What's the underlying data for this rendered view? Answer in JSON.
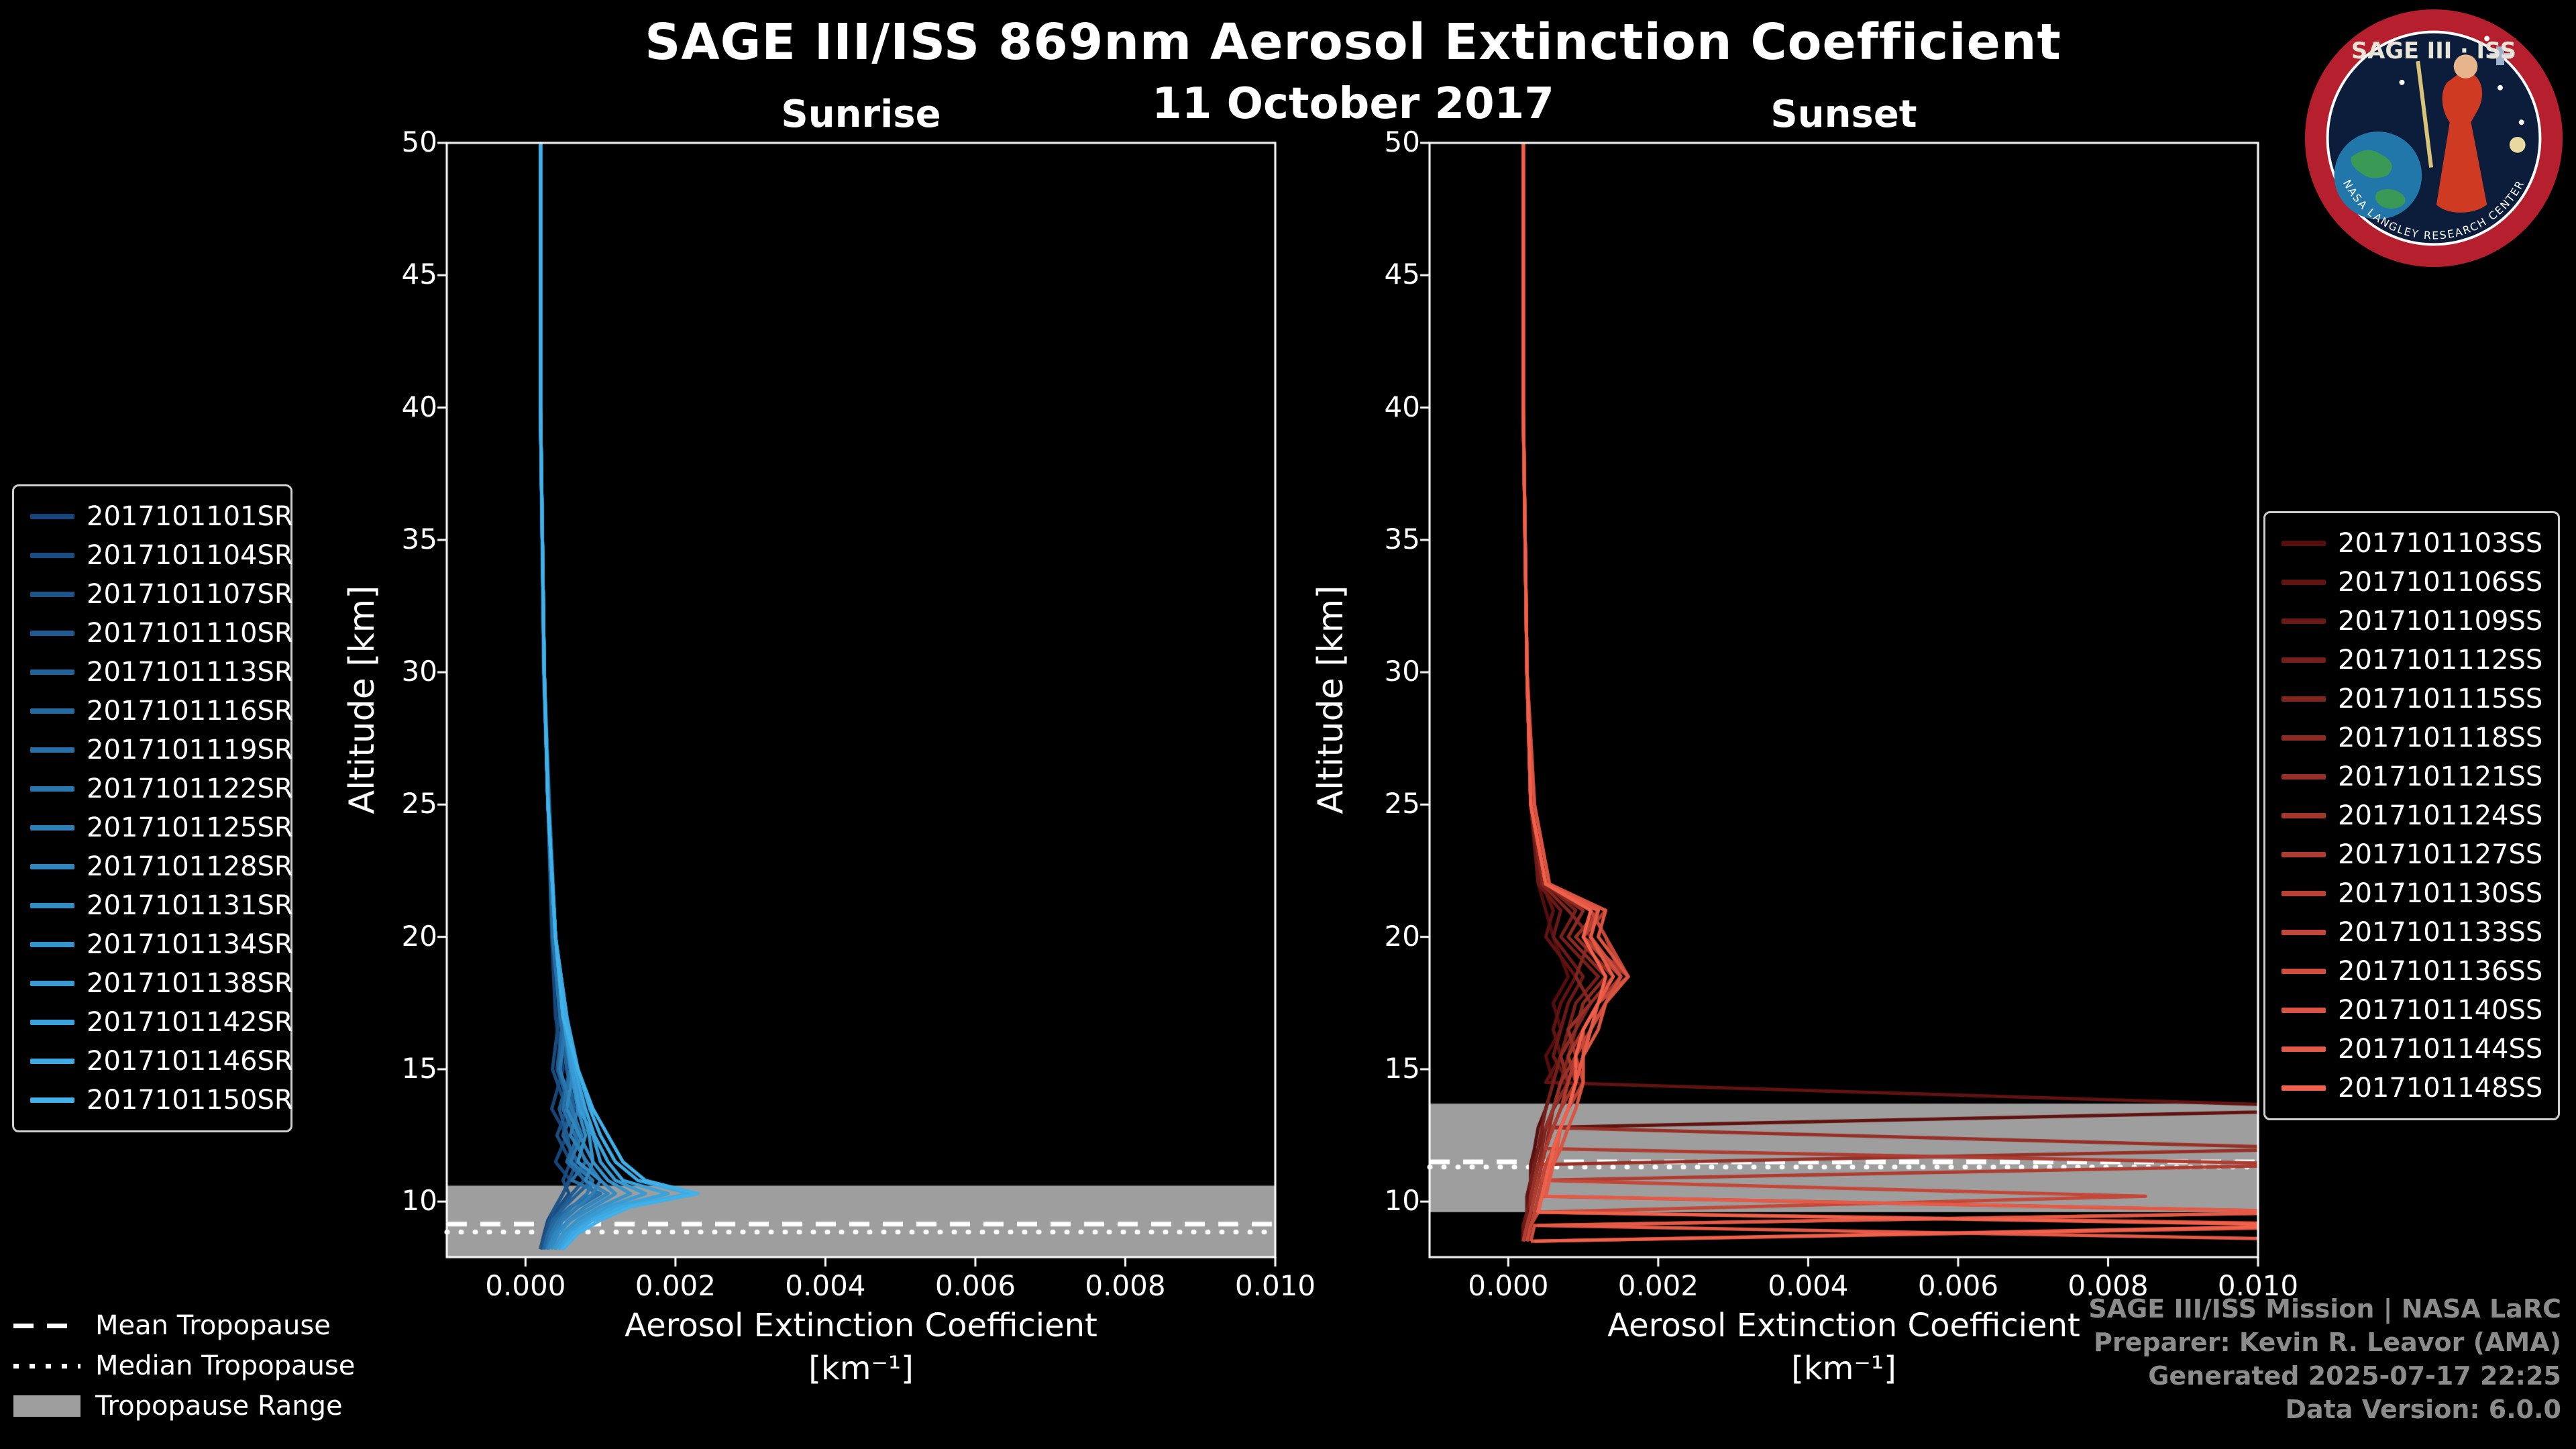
{
  "logo": {
    "title": "SAGE III · ISS",
    "ring_text": "NASA LANGLEY RESEARCH CENTER"
  },
  "footer": {
    "lines": [
      "SAGE III/ISS Mission | NASA LaRC",
      "Preparer: Kevin R. Leavor (AMA)",
      "Generated 2025-07-17 22:25",
      "Data Version: 6.0.0"
    ]
  },
  "chart_data": {
    "type": "line",
    "title": "SAGE III/ISS 869nm Aerosol Extinction Coefficient",
    "date": "11 October 2017",
    "xlabel": "Aerosol Extinction Coefficient",
    "xunit": "[km⁻¹]",
    "ylabel": "Altitude [km]",
    "xlim": [
      -0.00105,
      0.01
    ],
    "ylim": [
      7.9,
      50
    ],
    "xticks": {
      "values": [
        0,
        0.002,
        0.004,
        0.006,
        0.008,
        0.01
      ],
      "labels": [
        "0.000",
        "0.002",
        "0.004",
        "0.006",
        "0.008",
        "0.010"
      ]
    },
    "yticks": {
      "values": [
        10,
        15,
        20,
        25,
        30,
        35,
        40,
        45,
        50
      ],
      "labels": [
        "10",
        "15",
        "20",
        "25",
        "30",
        "35",
        "40",
        "45",
        "50"
      ]
    },
    "value_scale": 0.001,
    "band_color": "#9e9e9e",
    "tropopause_legend": [
      {
        "label": "Mean Tropopause",
        "style": "dashed"
      },
      {
        "label": "Median Tropopause",
        "style": "dotted"
      },
      {
        "label": "Tropopause Range",
        "style": "band"
      }
    ],
    "charts": [
      {
        "name": "Sunrise",
        "color_start": "#16457a",
        "color_end": "#41b1ea",
        "tropopause": {
          "mean": 9.15,
          "median": 8.85,
          "range": [
            7.9,
            10.6
          ]
        },
        "altitudes": [
          50,
          40,
          30,
          25,
          20,
          17,
          15,
          13.5,
          12.5,
          11.5,
          10.8,
          10.3,
          9.8,
          9.3,
          8.8,
          8.2
        ],
        "series": [
          {
            "name": "2017101101SR",
            "values": [
              0.2,
              0.2,
              0.25,
              0.3,
              0.35,
              0.4,
              0.5,
              0.35,
              0.55,
              0.4,
              0.6,
              0.5,
              0.4,
              0.3,
              0.25,
              0.2
            ]
          },
          {
            "name": "2017101104SR",
            "values": [
              0.2,
              0.2,
              0.24,
              0.3,
              0.38,
              0.45,
              0.36,
              0.55,
              0.42,
              0.6,
              0.5,
              0.58,
              0.45,
              0.34,
              0.28,
              0.22
            ]
          },
          {
            "name": "2017101107SR",
            "values": [
              0.2,
              0.2,
              0.25,
              0.31,
              0.36,
              0.5,
              0.42,
              0.6,
              0.5,
              0.68,
              0.58,
              0.5,
              0.4,
              0.32,
              0.27,
              0.2
            ]
          },
          {
            "name": "2017101110SR",
            "values": [
              0.2,
              0.2,
              0.25,
              0.32,
              0.4,
              0.48,
              0.6,
              0.45,
              0.56,
              0.62,
              0.78,
              0.62,
              0.5,
              0.38,
              0.3,
              0.24
            ]
          },
          {
            "name": "2017101113SR",
            "values": [
              0.2,
              0.2,
              0.25,
              0.3,
              0.38,
              0.46,
              0.55,
              0.65,
              0.5,
              0.7,
              0.88,
              0.7,
              0.52,
              0.36,
              0.3,
              0.24
            ]
          },
          {
            "name": "2017101116SR",
            "values": [
              0.2,
              0.2,
              0.25,
              0.3,
              0.4,
              0.5,
              0.44,
              0.6,
              0.7,
              0.55,
              0.8,
              0.92,
              0.6,
              0.4,
              0.3,
              0.25
            ]
          },
          {
            "name": "2017101119SR",
            "values": [
              0.2,
              0.2,
              0.25,
              0.3,
              0.36,
              0.46,
              0.6,
              0.5,
              0.66,
              0.8,
              0.62,
              1.0,
              0.7,
              0.5,
              0.36,
              0.28
            ]
          },
          {
            "name": "2017101122SR",
            "values": [
              0.2,
              0.2,
              0.25,
              0.31,
              0.4,
              0.55,
              0.46,
              0.62,
              0.75,
              0.6,
              0.9,
              0.82,
              0.62,
              0.45,
              0.34,
              0.28
            ]
          },
          {
            "name": "2017101125SR",
            "values": [
              0.2,
              0.2,
              0.25,
              0.3,
              0.4,
              0.5,
              0.6,
              0.7,
              0.6,
              0.82,
              1.0,
              0.9,
              0.7,
              0.5,
              0.38,
              0.3
            ]
          },
          {
            "name": "2017101128SR",
            "values": [
              0.2,
              0.2,
              0.25,
              0.3,
              0.4,
              0.5,
              0.64,
              0.55,
              0.72,
              0.9,
              0.8,
              1.1,
              0.8,
              0.58,
              0.4,
              0.3
            ]
          },
          {
            "name": "2017101131SR",
            "values": [
              0.2,
              0.2,
              0.25,
              0.3,
              0.4,
              0.52,
              0.6,
              0.7,
              0.8,
              0.7,
              1.0,
              1.2,
              0.9,
              0.6,
              0.44,
              0.34
            ]
          },
          {
            "name": "2017101134SR",
            "values": [
              0.2,
              0.2,
              0.25,
              0.3,
              0.4,
              0.55,
              0.66,
              0.76,
              0.85,
              0.9,
              1.1,
              1.4,
              1.0,
              0.7,
              0.5,
              0.38
            ]
          },
          {
            "name": "2017101138SR",
            "values": [
              0.2,
              0.2,
              0.25,
              0.3,
              0.4,
              0.5,
              0.62,
              0.72,
              0.9,
              1.0,
              1.2,
              1.6,
              1.1,
              0.78,
              0.55,
              0.4
            ]
          },
          {
            "name": "2017101142SR",
            "values": [
              0.2,
              0.2,
              0.25,
              0.3,
              0.4,
              0.52,
              0.66,
              0.8,
              0.92,
              1.1,
              1.3,
              1.9,
              1.2,
              0.85,
              0.6,
              0.44
            ]
          },
          {
            "name": "2017101146SR",
            "values": [
              0.2,
              0.2,
              0.25,
              0.3,
              0.4,
              0.55,
              0.7,
              0.86,
              1.0,
              1.2,
              1.5,
              2.2,
              1.3,
              0.9,
              0.64,
              0.48
            ]
          },
          {
            "name": "2017101150SR",
            "values": [
              0.2,
              0.2,
              0.25,
              0.3,
              0.4,
              0.5,
              0.7,
              0.9,
              1.1,
              1.3,
              1.6,
              2.3,
              1.4,
              1.0,
              0.7,
              0.5
            ]
          }
        ]
      },
      {
        "name": "Sunset",
        "color_start": "#550d0d",
        "color_end": "#f0604a",
        "tropopause": {
          "mean": 11.5,
          "median": 11.3,
          "range": [
            9.6,
            13.7
          ]
        },
        "altitudes": [
          50,
          40,
          30,
          25,
          22,
          21,
          20,
          18.5,
          17.5,
          16.5,
          15.5,
          14.5,
          13.5,
          12.8,
          12,
          11.4,
          10.8,
          10.2,
          9.6,
          9.1,
          8.5
        ],
        "series": [
          {
            "name": "2017101103SS",
            "values": [
              0.2,
              0.2,
              0.25,
              0.3,
              0.4,
              0.5,
              0.6,
              0.8,
              0.6,
              0.7,
              0.5,
              0.6,
              0.5,
              0.4,
              0.35,
              0.3,
              0.3,
              0.25,
              0.25,
              0.2,
              0.2
            ]
          },
          {
            "name": "2017101106SS",
            "values": [
              0.2,
              0.2,
              0.25,
              0.3,
              0.45,
              0.6,
              0.5,
              0.9,
              0.7,
              0.6,
              0.7,
              0.5,
              12,
              0.5,
              0.4,
              0.3,
              0.3,
              0.25,
              0.25,
              0.2,
              0.2
            ]
          },
          {
            "name": "2017101109SS",
            "values": [
              0.2,
              0.2,
              0.25,
              0.3,
              0.4,
              0.7,
              0.6,
              1.0,
              0.8,
              0.7,
              0.6,
              0.8,
              0.6,
              0.5,
              0.4,
              0.35,
              0.3,
              0.3,
              0.25,
              0.2,
              0.2
            ]
          },
          {
            "name": "2017101112SS",
            "values": [
              0.2,
              0.2,
              0.25,
              0.3,
              0.5,
              0.9,
              0.7,
              1.2,
              0.9,
              0.8,
              0.7,
              0.6,
              0.5,
              0.45,
              0.4,
              0.35,
              0.3,
              0.3,
              0.25,
              0.25,
              0.2
            ]
          },
          {
            "name": "2017101115SS",
            "values": [
              0.2,
              0.2,
              0.25,
              0.3,
              0.45,
              0.8,
              1.1,
              0.9,
              1.1,
              0.9,
              0.8,
              0.7,
              0.6,
              0.5,
              0.45,
              0.4,
              0.35,
              0.3,
              0.3,
              0.25,
              0.2
            ]
          },
          {
            "name": "2017101118SS",
            "values": [
              0.2,
              0.2,
              0.25,
              0.3,
              0.5,
              1.0,
              0.8,
              1.3,
              1.0,
              0.9,
              0.7,
              0.8,
              0.6,
              0.55,
              0.5,
              0.4,
              0.35,
              0.3,
              0.3,
              0.25,
              0.2
            ]
          },
          {
            "name": "2017101121SS",
            "values": [
              0.2,
              0.2,
              0.25,
              0.3,
              0.5,
              1.2,
              0.9,
              1.4,
              1.1,
              0.8,
              0.9,
              0.7,
              0.6,
              0.5,
              11,
              0.4,
              0.35,
              0.3,
              0.3,
              0.25,
              0.2
            ]
          },
          {
            "name": "2017101124SS",
            "values": [
              0.2,
              0.2,
              0.25,
              0.35,
              0.55,
              1.1,
              1.3,
              1.5,
              1.2,
              1.0,
              0.8,
              0.9,
              0.7,
              0.6,
              0.5,
              0.45,
              0.4,
              0.35,
              0.3,
              0.25,
              0.2
            ]
          },
          {
            "name": "2017101127SS",
            "values": [
              0.2,
              0.2,
              0.25,
              0.3,
              0.5,
              1.3,
              1.0,
              1.6,
              1.2,
              1.0,
              0.9,
              0.8,
              0.7,
              0.6,
              0.5,
              11,
              0.4,
              0.35,
              0.3,
              0.25,
              0.2
            ]
          },
          {
            "name": "2017101130SS",
            "values": [
              0.2,
              0.2,
              0.25,
              0.3,
              0.5,
              1.2,
              1.0,
              1.5,
              1.3,
              1.1,
              0.9,
              1.0,
              0.8,
              0.7,
              0.6,
              0.5,
              0.45,
              0.4,
              0.35,
              0.3,
              0.25
            ]
          },
          {
            "name": "2017101133SS",
            "values": [
              0.2,
              0.2,
              0.25,
              0.3,
              0.5,
              1.1,
              1.3,
              1.6,
              1.2,
              1.0,
              1.0,
              0.9,
              0.8,
              0.7,
              0.6,
              0.5,
              0.45,
              8.5,
              0.4,
              0.3,
              0.25
            ]
          },
          {
            "name": "2017101136SS",
            "values": [
              0.2,
              0.2,
              0.25,
              0.3,
              0.5,
              1.2,
              1.1,
              1.5,
              1.3,
              1.1,
              1.0,
              0.9,
              0.8,
              0.7,
              0.6,
              0.55,
              0.5,
              0.45,
              11,
              0.35,
              0.3
            ]
          },
          {
            "name": "2017101140SS",
            "values": [
              0.2,
              0.2,
              0.25,
              0.35,
              0.55,
              1.3,
              1.2,
              1.6,
              1.3,
              1.2,
              1.0,
              1.0,
              0.9,
              0.8,
              0.7,
              0.6,
              0.5,
              0.45,
              0.4,
              12,
              0.3
            ]
          },
          {
            "name": "2017101144SS",
            "values": [
              0.2,
              0.2,
              0.25,
              0.3,
              0.5,
              1.2,
              1.1,
              1.4,
              1.2,
              1.1,
              1.0,
              0.9,
              0.8,
              0.7,
              0.65,
              0.6,
              0.55,
              0.5,
              11,
              0.4,
              12
            ]
          },
          {
            "name": "2017101148SS",
            "values": [
              0.2,
              0.2,
              0.25,
              0.3,
              0.5,
              1.1,
              1.0,
              1.3,
              1.2,
              1.0,
              0.9,
              0.9,
              0.8,
              0.7,
              0.6,
              0.55,
              0.5,
              0.45,
              0.4,
              11,
              0.35
            ]
          }
        ]
      }
    ]
  }
}
